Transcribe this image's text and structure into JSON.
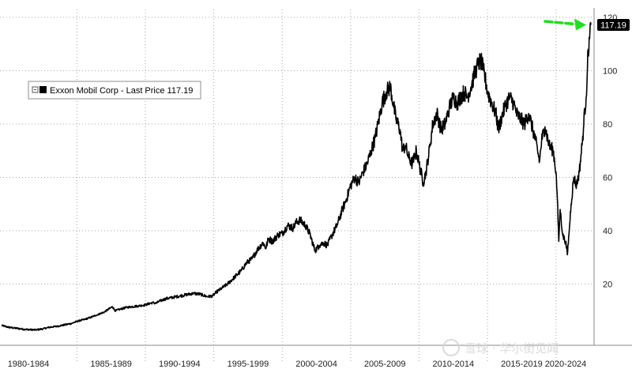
{
  "chart_data": {
    "type": "line",
    "title": "",
    "xlabel": "",
    "ylabel": "",
    "xlim": [
      1979.5,
      2022.55
    ],
    "ylim": [
      0,
      120
    ],
    "y_ticks": [
      20,
      40,
      60,
      80,
      100,
      120
    ],
    "y_tick_labels": [
      "20",
      "40",
      "60",
      "80",
      "100",
      "120"
    ],
    "x_tick_labels": [
      "1980-1984",
      "1985-1989",
      "1990-1994",
      "1995-1999",
      "2000-2004",
      "2005-2009",
      "2010-2014",
      "2015-2019",
      "2020-2024"
    ],
    "grid": true,
    "legend": {
      "placement": "top-left",
      "entries": [
        "Exxon Mobil Corp - Last Price 117.19"
      ]
    },
    "last_value_label": "117.19",
    "series": [
      {
        "name": "Exxon Mobil Corp - Last Price",
        "color": "#000000",
        "x": [
          1979.5,
          1980.0,
          1980.6,
          1981.2,
          1982.0,
          1982.5,
          1983.0,
          1983.6,
          1984.0,
          1984.6,
          1985.0,
          1985.6,
          1986.0,
          1986.5,
          1987.0,
          1987.6,
          1987.8,
          1988.2,
          1988.6,
          1989.0,
          1989.5,
          1990.0,
          1990.5,
          1990.8,
          1991.0,
          1991.5,
          1992.0,
          1992.5,
          1993.0,
          1993.5,
          1994.0,
          1994.5,
          1994.9,
          1995.2,
          1995.6,
          1996.0,
          1996.5,
          1997.0,
          1997.4,
          1997.8,
          1998.2,
          1998.6,
          1998.8,
          1999.0,
          1999.3,
          1999.7,
          2000.0,
          2000.4,
          2000.8,
          2001.0,
          2001.3,
          2001.7,
          2002.0,
          2002.4,
          2002.7,
          2003.0,
          2003.3,
          2003.6,
          2004.0,
          2004.4,
          2004.7,
          2005.0,
          2005.3,
          2005.6,
          2005.9,
          2006.2,
          2006.5,
          2006.8,
          2007.0,
          2007.3,
          2007.6,
          2007.9,
          2008.1,
          2008.3,
          2008.6,
          2008.8,
          2009.0,
          2009.2,
          2009.5,
          2009.8,
          2010.0,
          2010.3,
          2010.5,
          2010.8,
          2011.0,
          2011.3,
          2011.6,
          2011.9,
          2012.2,
          2012.5,
          2012.8,
          2013.0,
          2013.3,
          2013.5,
          2013.8,
          2014.0,
          2014.2,
          2014.5,
          2014.7,
          2014.9,
          2015.0,
          2015.3,
          2015.6,
          2015.8,
          2016.0,
          2016.3,
          2016.6,
          2016.9,
          2017.1,
          2017.4,
          2017.7,
          2018.0,
          2018.2,
          2018.5,
          2018.8,
          2018.95,
          2019.2,
          2019.5,
          2019.8,
          2020.0,
          2020.1,
          2020.2,
          2020.3,
          2020.5,
          2020.7,
          2020.83,
          2020.95,
          2021.1,
          2021.3,
          2021.5,
          2021.7,
          2021.9,
          2022.0,
          2022.1,
          2022.2,
          2022.3,
          2022.35,
          2022.45,
          2022.55
        ],
        "values": [
          4.5,
          3.8,
          3.4,
          3.0,
          2.8,
          3.2,
          3.8,
          4.2,
          4.6,
          5.2,
          6.0,
          6.8,
          7.5,
          8.5,
          9.5,
          11.5,
          10.0,
          10.6,
          11.2,
          11.5,
          11.8,
          12.2,
          13.0,
          12.8,
          13.5,
          14.5,
          15.0,
          15.5,
          16.0,
          16.5,
          16.2,
          15.3,
          15.5,
          17.0,
          18.5,
          20.0,
          22.5,
          25.0,
          28.0,
          29.5,
          33.0,
          35.5,
          33.5,
          37.0,
          36.0,
          38.5,
          39.0,
          42.0,
          41.0,
          43.0,
          44.0,
          42.0,
          39.0,
          32.5,
          34.5,
          35.5,
          34.5,
          38.0,
          42.0,
          48.0,
          52.0,
          57.0,
          60.0,
          58.0,
          62.0,
          65.0,
          70.0,
          75.0,
          80.0,
          88.0,
          92.0,
          94.0,
          88.0,
          82.0,
          78.0,
          70.0,
          72.0,
          68.0,
          65.0,
          70.0,
          65.0,
          58.0,
          62.0,
          72.0,
          80.0,
          84.0,
          78.0,
          80.0,
          86.0,
          90.0,
          88.0,
          90.0,
          92.0,
          90.0,
          94.0,
          98.0,
          101.0,
          104.0,
          100.0,
          95.0,
          92.0,
          88.0,
          84.0,
          78.0,
          82.0,
          87.0,
          90.0,
          88.0,
          84.0,
          82.0,
          80.0,
          84.0,
          80.0,
          74.0,
          66.0,
          74.0,
          79.0,
          72.0,
          70.0,
          62.0,
          52.0,
          36.0,
          48.0,
          38.0,
          36.0,
          31.0,
          39.0,
          50.0,
          60.0,
          57.0,
          62.0,
          72.0,
          78.0,
          85.0,
          90.0,
          102.0,
          108.0,
          112.0,
          117.19
        ]
      }
    ],
    "annotations": [
      {
        "type": "arrow",
        "color": "#22dd22",
        "points_to": "last value"
      }
    ]
  },
  "watermark": {
    "text": "雪球 · 华尔街见闻"
  },
  "colors": {
    "line": "#000000",
    "grid": "#a7a7a7",
    "arrow": "#22dd22",
    "label_bg": "#000000"
  }
}
